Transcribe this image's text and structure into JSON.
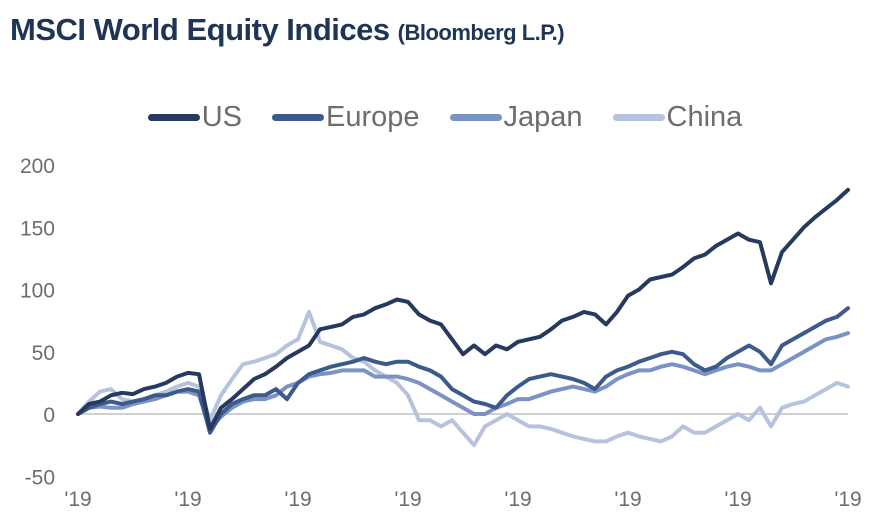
{
  "header": {
    "title": "MSCI World Equity Indices",
    "source": "(Bloomberg L.P.)"
  },
  "chart_data": {
    "type": "line",
    "title": "MSCI World Equity Indices",
    "ylim": [
      -50,
      200
    ],
    "yticks": [
      -50,
      0,
      50,
      100,
      150,
      200
    ],
    "xtick_labels": [
      "'19",
      "'19",
      "'19",
      "'19",
      "'19",
      "'19",
      "'19",
      "'19"
    ],
    "grid": false,
    "zero_line": true,
    "legend_position": "top",
    "series": [
      {
        "name": "US",
        "color": "#253a5e",
        "values": [
          0,
          8,
          10,
          15,
          17,
          16,
          20,
          22,
          25,
          30,
          33,
          32,
          -12,
          5,
          12,
          20,
          28,
          32,
          38,
          45,
          50,
          55,
          68,
          70,
          72,
          78,
          80,
          85,
          88,
          92,
          90,
          80,
          75,
          72,
          60,
          48,
          55,
          48,
          55,
          52,
          58,
          60,
          62,
          68,
          75,
          78,
          82,
          80,
          72,
          82,
          95,
          100,
          108,
          110,
          112,
          118,
          125,
          128,
          135,
          140,
          145,
          140,
          138,
          105,
          130,
          140,
          150,
          158,
          165,
          172,
          180
        ]
      },
      {
        "name": "Europe",
        "color": "#3d5a8c",
        "values": [
          0,
          5,
          8,
          10,
          8,
          10,
          12,
          15,
          15,
          18,
          20,
          18,
          -15,
          0,
          8,
          12,
          15,
          15,
          20,
          12,
          25,
          32,
          35,
          38,
          40,
          42,
          45,
          42,
          40,
          42,
          42,
          38,
          35,
          30,
          20,
          15,
          10,
          8,
          5,
          15,
          22,
          28,
          30,
          32,
          30,
          28,
          25,
          20,
          30,
          35,
          38,
          42,
          45,
          48,
          50,
          48,
          40,
          35,
          38,
          45,
          50,
          55,
          50,
          40,
          55,
          60,
          65,
          70,
          75,
          78,
          85
        ]
      },
      {
        "name": "Japan",
        "color": "#7b93c4",
        "values": [
          0,
          5,
          6,
          5,
          5,
          8,
          10,
          12,
          15,
          18,
          18,
          15,
          -12,
          -2,
          5,
          10,
          12,
          12,
          15,
          22,
          25,
          30,
          32,
          33,
          35,
          35,
          35,
          30,
          30,
          30,
          28,
          25,
          20,
          15,
          10,
          5,
          0,
          0,
          5,
          8,
          12,
          12,
          15,
          18,
          20,
          22,
          20,
          18,
          22,
          28,
          32,
          35,
          35,
          38,
          40,
          38,
          35,
          32,
          35,
          38,
          40,
          38,
          35,
          35,
          40,
          45,
          50,
          55,
          60,
          62,
          65
        ]
      },
      {
        "name": "China",
        "color": "#b7c3dd",
        "values": [
          0,
          10,
          18,
          20,
          12,
          10,
          12,
          15,
          18,
          22,
          25,
          22,
          -5,
          15,
          28,
          40,
          42,
          45,
          48,
          55,
          60,
          82,
          58,
          55,
          52,
          45,
          42,
          35,
          30,
          25,
          15,
          -5,
          -5,
          -10,
          -5,
          -15,
          -25,
          -10,
          -5,
          0,
          -5,
          -10,
          -10,
          -12,
          -15,
          -18,
          -20,
          -22,
          -22,
          -18,
          -15,
          -18,
          -20,
          -22,
          -18,
          -10,
          -15,
          -15,
          -10,
          -5,
          0,
          -5,
          5,
          -10,
          5,
          8,
          10,
          15,
          20,
          25,
          22
        ]
      }
    ]
  }
}
